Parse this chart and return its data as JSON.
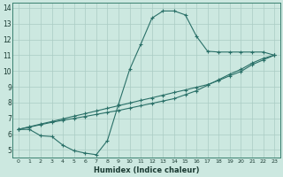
{
  "xlabel": "Humidex (Indice chaleur)",
  "bg_color": "#cce8e0",
  "grid_color": "#aaccC4",
  "line_color": "#2a7068",
  "xlim": [
    -0.5,
    23.5
  ],
  "ylim": [
    4.5,
    14.3
  ],
  "xticks": [
    0,
    1,
    2,
    3,
    4,
    5,
    6,
    7,
    8,
    9,
    10,
    11,
    12,
    13,
    14,
    15,
    16,
    17,
    18,
    19,
    20,
    21,
    22,
    23
  ],
  "yticks": [
    5,
    6,
    7,
    8,
    9,
    10,
    11,
    12,
    13,
    14
  ],
  "line1_x": [
    0,
    1,
    2,
    3,
    4,
    5,
    6,
    7,
    8,
    9,
    10,
    11,
    12,
    13,
    14,
    15,
    16,
    17,
    18,
    19,
    20,
    21,
    22,
    23
  ],
  "line1_y": [
    6.3,
    6.3,
    5.9,
    5.85,
    5.3,
    4.95,
    4.8,
    4.7,
    5.6,
    7.9,
    10.1,
    11.7,
    13.35,
    13.8,
    13.8,
    13.55,
    12.2,
    11.25,
    11.2,
    11.2,
    11.2,
    11.2,
    11.2,
    11.0
  ],
  "line2_x": [
    0,
    1,
    2,
    3,
    4,
    5,
    6,
    7,
    8,
    9,
    10,
    11,
    12,
    13,
    14,
    15,
    16,
    17,
    18,
    19,
    20,
    21,
    22,
    23
  ],
  "line2_y": [
    6.3,
    6.47,
    6.64,
    6.8,
    6.97,
    7.14,
    7.3,
    7.47,
    7.64,
    7.8,
    7.97,
    8.14,
    8.3,
    8.47,
    8.64,
    8.8,
    8.97,
    9.14,
    9.4,
    9.7,
    9.97,
    10.4,
    10.7,
    11.0
  ],
  "line3_x": [
    0,
    1,
    2,
    3,
    4,
    5,
    6,
    7,
    8,
    9,
    10,
    11,
    12,
    13,
    14,
    15,
    16,
    17,
    18,
    19,
    20,
    21,
    22,
    23
  ],
  "line3_y": [
    6.3,
    6.45,
    6.6,
    6.75,
    6.88,
    7.0,
    7.12,
    7.25,
    7.38,
    7.5,
    7.65,
    7.8,
    7.95,
    8.1,
    8.25,
    8.5,
    8.75,
    9.1,
    9.45,
    9.8,
    10.1,
    10.5,
    10.8,
    11.0
  ]
}
